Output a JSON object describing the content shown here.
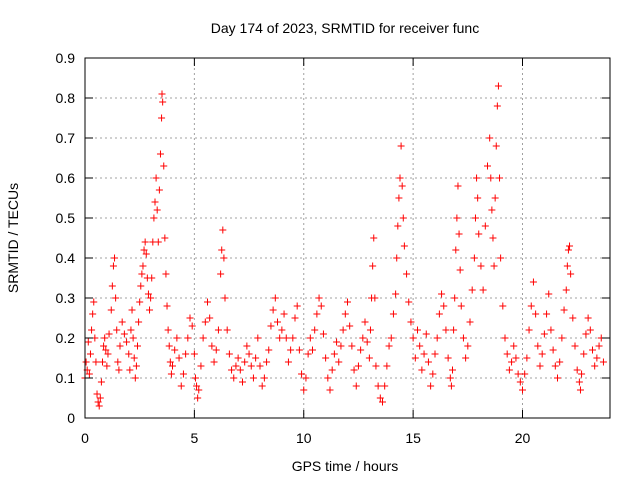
{
  "chart_data": {
    "type": "scatter",
    "title": "Day 174 of 2023, SRMTID for receiver func",
    "xlabel": "GPS time / hours",
    "ylabel": "SRMTID / TECUs",
    "xlim": [
      0,
      24
    ],
    "ylim": [
      0,
      0.9
    ],
    "x_ticks": [
      0,
      5,
      10,
      15,
      20
    ],
    "x_tick_labels": [
      "0",
      "5",
      "10",
      "15",
      "20"
    ],
    "y_ticks": [
      0,
      0.1,
      0.2,
      0.3,
      0.4,
      0.5,
      0.6,
      0.7,
      0.8,
      0.9
    ],
    "y_tick_labels": [
      "0",
      "0.1",
      "0.2",
      "0.3",
      "0.4",
      "0.5",
      "0.6",
      "0.7",
      "0.8",
      "0.9"
    ],
    "grid": true,
    "marker": "+",
    "color": "#ff0000",
    "series": [
      {
        "name": "SRMTID",
        "points": [
          [
            0.0,
            0.1
          ],
          [
            0.05,
            0.14
          ],
          [
            0.1,
            0.12
          ],
          [
            0.15,
            0.19
          ],
          [
            0.2,
            0.11
          ],
          [
            0.25,
            0.16
          ],
          [
            0.3,
            0.22
          ],
          [
            0.35,
            0.26
          ],
          [
            0.4,
            0.29
          ],
          [
            0.45,
            0.2
          ],
          [
            0.5,
            0.14
          ],
          [
            0.55,
            0.06
          ],
          [
            0.6,
            0.04
          ],
          [
            0.65,
            0.03
          ],
          [
            0.7,
            0.05
          ],
          [
            0.75,
            0.09
          ],
          [
            0.8,
            0.14
          ],
          [
            0.85,
            0.18
          ],
          [
            0.9,
            0.2
          ],
          [
            0.95,
            0.17
          ],
          [
            1.0,
            0.13
          ],
          [
            1.05,
            0.16
          ],
          [
            1.1,
            0.21
          ],
          [
            1.2,
            0.27
          ],
          [
            1.25,
            0.33
          ],
          [
            1.3,
            0.38
          ],
          [
            1.35,
            0.4
          ],
          [
            1.4,
            0.3
          ],
          [
            1.45,
            0.22
          ],
          [
            1.5,
            0.14
          ],
          [
            1.55,
            0.12
          ],
          [
            1.6,
            0.18
          ],
          [
            1.7,
            0.24
          ],
          [
            1.8,
            0.21
          ],
          [
            1.9,
            0.19
          ],
          [
            2.0,
            0.16
          ],
          [
            2.05,
            0.12
          ],
          [
            2.1,
            0.22
          ],
          [
            2.15,
            0.27
          ],
          [
            2.2,
            0.2
          ],
          [
            2.25,
            0.15
          ],
          [
            2.3,
            0.1
          ],
          [
            2.35,
            0.13
          ],
          [
            2.4,
            0.18
          ],
          [
            2.45,
            0.24
          ],
          [
            2.5,
            0.29
          ],
          [
            2.55,
            0.33
          ],
          [
            2.6,
            0.36
          ],
          [
            2.65,
            0.38
          ],
          [
            2.7,
            0.42
          ],
          [
            2.75,
            0.44
          ],
          [
            2.8,
            0.41
          ],
          [
            2.85,
            0.35
          ],
          [
            2.9,
            0.31
          ],
          [
            2.95,
            0.27
          ],
          [
            3.0,
            0.3
          ],
          [
            3.05,
            0.35
          ],
          [
            3.1,
            0.44
          ],
          [
            3.15,
            0.5
          ],
          [
            3.2,
            0.54
          ],
          [
            3.25,
            0.6
          ],
          [
            3.3,
            0.52
          ],
          [
            3.35,
            0.44
          ],
          [
            3.4,
            0.57
          ],
          [
            3.45,
            0.66
          ],
          [
            3.5,
            0.75
          ],
          [
            3.52,
            0.81
          ],
          [
            3.55,
            0.79
          ],
          [
            3.6,
            0.63
          ],
          [
            3.65,
            0.45
          ],
          [
            3.7,
            0.36
          ],
          [
            3.75,
            0.28
          ],
          [
            3.8,
            0.22
          ],
          [
            3.85,
            0.18
          ],
          [
            3.9,
            0.14
          ],
          [
            3.95,
            0.11
          ],
          [
            4.0,
            0.13
          ],
          [
            4.1,
            0.17
          ],
          [
            4.2,
            0.2
          ],
          [
            4.3,
            0.15
          ],
          [
            4.4,
            0.08
          ],
          [
            4.5,
            0.11
          ],
          [
            4.6,
            0.16
          ],
          [
            4.7,
            0.2
          ],
          [
            4.8,
            0.25
          ],
          [
            4.9,
            0.23
          ],
          [
            5.0,
            0.16
          ],
          [
            5.05,
            0.1
          ],
          [
            5.1,
            0.08
          ],
          [
            5.15,
            0.05
          ],
          [
            5.2,
            0.07
          ],
          [
            5.3,
            0.13
          ],
          [
            5.4,
            0.2
          ],
          [
            5.5,
            0.24
          ],
          [
            5.6,
            0.29
          ],
          [
            5.7,
            0.25
          ],
          [
            5.8,
            0.18
          ],
          [
            5.9,
            0.14
          ],
          [
            6.0,
            0.17
          ],
          [
            6.1,
            0.22
          ],
          [
            6.2,
            0.36
          ],
          [
            6.25,
            0.42
          ],
          [
            6.3,
            0.47
          ],
          [
            6.35,
            0.4
          ],
          [
            6.4,
            0.3
          ],
          [
            6.5,
            0.22
          ],
          [
            6.6,
            0.16
          ],
          [
            6.7,
            0.12
          ],
          [
            6.8,
            0.1
          ],
          [
            6.9,
            0.13
          ],
          [
            7.0,
            0.15
          ],
          [
            7.1,
            0.12
          ],
          [
            7.2,
            0.09
          ],
          [
            7.3,
            0.14
          ],
          [
            7.4,
            0.18
          ],
          [
            7.5,
            0.16
          ],
          [
            7.6,
            0.13
          ],
          [
            7.7,
            0.1
          ],
          [
            7.8,
            0.15
          ],
          [
            7.9,
            0.2
          ],
          [
            8.0,
            0.13
          ],
          [
            8.1,
            0.08
          ],
          [
            8.2,
            0.1
          ],
          [
            8.3,
            0.14
          ],
          [
            8.4,
            0.17
          ],
          [
            8.5,
            0.23
          ],
          [
            8.6,
            0.27
          ],
          [
            8.7,
            0.3
          ],
          [
            8.8,
            0.24
          ],
          [
            8.9,
            0.2
          ],
          [
            9.0,
            0.22
          ],
          [
            9.1,
            0.26
          ],
          [
            9.2,
            0.2
          ],
          [
            9.3,
            0.14
          ],
          [
            9.4,
            0.17
          ],
          [
            9.5,
            0.2
          ],
          [
            9.6,
            0.25
          ],
          [
            9.7,
            0.28
          ],
          [
            9.8,
            0.17
          ],
          [
            9.9,
            0.11
          ],
          [
            10.0,
            0.07
          ],
          [
            10.1,
            0.1
          ],
          [
            10.2,
            0.16
          ],
          [
            10.3,
            0.2
          ],
          [
            10.4,
            0.17
          ],
          [
            10.5,
            0.22
          ],
          [
            10.6,
            0.26
          ],
          [
            10.7,
            0.3
          ],
          [
            10.8,
            0.28
          ],
          [
            10.9,
            0.21
          ],
          [
            11.0,
            0.15
          ],
          [
            11.1,
            0.1
          ],
          [
            11.2,
            0.07
          ],
          [
            11.3,
            0.12
          ],
          [
            11.4,
            0.16
          ],
          [
            11.5,
            0.19
          ],
          [
            11.6,
            0.14
          ],
          [
            11.7,
            0.18
          ],
          [
            11.8,
            0.22
          ],
          [
            11.9,
            0.26
          ],
          [
            12.0,
            0.29
          ],
          [
            12.1,
            0.23
          ],
          [
            12.2,
            0.18
          ],
          [
            12.3,
            0.12
          ],
          [
            12.4,
            0.08
          ],
          [
            12.5,
            0.13
          ],
          [
            12.6,
            0.17
          ],
          [
            12.7,
            0.2
          ],
          [
            12.8,
            0.24
          ],
          [
            12.9,
            0.19
          ],
          [
            13.0,
            0.15
          ],
          [
            13.05,
            0.22
          ],
          [
            13.1,
            0.3
          ],
          [
            13.15,
            0.38
          ],
          [
            13.2,
            0.45
          ],
          [
            13.25,
            0.3
          ],
          [
            13.3,
            0.13
          ],
          [
            13.4,
            0.08
          ],
          [
            13.5,
            0.05
          ],
          [
            13.6,
            0.04
          ],
          [
            13.7,
            0.08
          ],
          [
            13.8,
            0.13
          ],
          [
            13.9,
            0.18
          ],
          [
            14.0,
            0.2
          ],
          [
            14.1,
            0.26
          ],
          [
            14.2,
            0.31
          ],
          [
            14.25,
            0.4
          ],
          [
            14.3,
            0.48
          ],
          [
            14.35,
            0.55
          ],
          [
            14.4,
            0.6
          ],
          [
            14.45,
            0.68
          ],
          [
            14.5,
            0.58
          ],
          [
            14.55,
            0.5
          ],
          [
            14.6,
            0.43
          ],
          [
            14.7,
            0.36
          ],
          [
            14.8,
            0.29
          ],
          [
            14.9,
            0.24
          ],
          [
            15.0,
            0.2
          ],
          [
            15.1,
            0.15
          ],
          [
            15.2,
            0.22
          ],
          [
            15.3,
            0.18
          ],
          [
            15.4,
            0.12
          ],
          [
            15.5,
            0.16
          ],
          [
            15.6,
            0.21
          ],
          [
            15.7,
            0.14
          ],
          [
            15.8,
            0.08
          ],
          [
            15.9,
            0.11
          ],
          [
            16.0,
            0.16
          ],
          [
            16.1,
            0.2
          ],
          [
            16.2,
            0.26
          ],
          [
            16.3,
            0.31
          ],
          [
            16.4,
            0.28
          ],
          [
            16.5,
            0.22
          ],
          [
            16.6,
            0.15
          ],
          [
            16.7,
            0.1
          ],
          [
            16.75,
            0.08
          ],
          [
            16.8,
            0.12
          ],
          [
            16.85,
            0.22
          ],
          [
            16.9,
            0.3
          ],
          [
            16.95,
            0.42
          ],
          [
            17.0,
            0.5
          ],
          [
            17.05,
            0.58
          ],
          [
            17.1,
            0.46
          ],
          [
            17.15,
            0.37
          ],
          [
            17.2,
            0.28
          ],
          [
            17.3,
            0.2
          ],
          [
            17.4,
            0.15
          ],
          [
            17.5,
            0.18
          ],
          [
            17.6,
            0.24
          ],
          [
            17.7,
            0.32
          ],
          [
            17.8,
            0.4
          ],
          [
            17.85,
            0.5
          ],
          [
            17.9,
            0.6
          ],
          [
            17.95,
            0.55
          ],
          [
            18.0,
            0.46
          ],
          [
            18.1,
            0.38
          ],
          [
            18.2,
            0.32
          ],
          [
            18.3,
            0.48
          ],
          [
            18.4,
            0.63
          ],
          [
            18.5,
            0.7
          ],
          [
            18.55,
            0.6
          ],
          [
            18.6,
            0.52
          ],
          [
            18.65,
            0.45
          ],
          [
            18.7,
            0.38
          ],
          [
            18.75,
            0.55
          ],
          [
            18.8,
            0.68
          ],
          [
            18.85,
            0.78
          ],
          [
            18.9,
            0.83
          ],
          [
            18.95,
            0.6
          ],
          [
            19.0,
            0.4
          ],
          [
            19.1,
            0.28
          ],
          [
            19.2,
            0.2
          ],
          [
            19.3,
            0.16
          ],
          [
            19.4,
            0.12
          ],
          [
            19.5,
            0.14
          ],
          [
            19.6,
            0.18
          ],
          [
            19.7,
            0.15
          ],
          [
            19.8,
            0.11
          ],
          [
            19.9,
            0.09
          ],
          [
            20.0,
            0.07
          ],
          [
            20.1,
            0.11
          ],
          [
            20.2,
            0.15
          ],
          [
            20.3,
            0.22
          ],
          [
            20.4,
            0.28
          ],
          [
            20.5,
            0.34
          ],
          [
            20.6,
            0.26
          ],
          [
            20.7,
            0.18
          ],
          [
            20.8,
            0.13
          ],
          [
            20.9,
            0.16
          ],
          [
            21.0,
            0.21
          ],
          [
            21.1,
            0.26
          ],
          [
            21.2,
            0.31
          ],
          [
            21.3,
            0.22
          ],
          [
            21.4,
            0.17
          ],
          [
            21.5,
            0.13
          ],
          [
            21.6,
            0.1
          ],
          [
            21.7,
            0.14
          ],
          [
            21.8,
            0.2
          ],
          [
            21.9,
            0.27
          ],
          [
            22.0,
            0.32
          ],
          [
            22.05,
            0.38
          ],
          [
            22.1,
            0.42
          ],
          [
            22.15,
            0.43
          ],
          [
            22.2,
            0.36
          ],
          [
            22.3,
            0.25
          ],
          [
            22.4,
            0.18
          ],
          [
            22.5,
            0.12
          ],
          [
            22.6,
            0.09
          ],
          [
            22.65,
            0.07
          ],
          [
            22.7,
            0.11
          ],
          [
            22.8,
            0.16
          ],
          [
            22.9,
            0.21
          ],
          [
            23.0,
            0.25
          ],
          [
            23.1,
            0.22
          ],
          [
            23.2,
            0.17
          ],
          [
            23.3,
            0.13
          ],
          [
            23.4,
            0.15
          ],
          [
            23.5,
            0.18
          ],
          [
            23.6,
            0.2
          ],
          [
            23.7,
            0.14
          ]
        ]
      }
    ]
  }
}
